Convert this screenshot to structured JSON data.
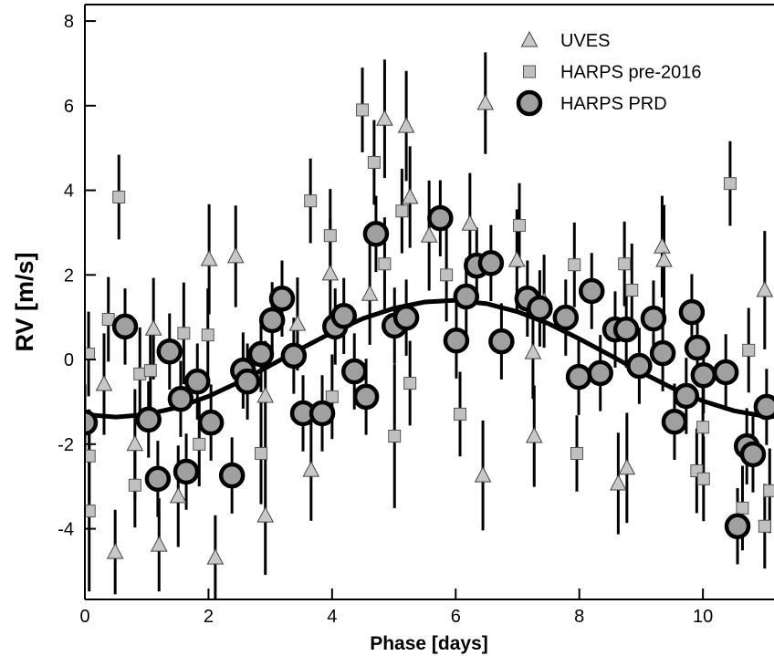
{
  "chart_data": {
    "type": "scatter",
    "xlabel": "Phase [days]",
    "ylabel": "RV [m/s]",
    "xlim": [
      0,
      11.15
    ],
    "ylim": [
      -5.67,
      8.39
    ],
    "xticks": [
      0,
      2,
      4,
      6,
      8,
      10
    ],
    "yticks": [
      -4,
      -2,
      0,
      2,
      4,
      6,
      8
    ],
    "legend": "upper right",
    "series": [
      {
        "name": "UVES",
        "marker": "triangle",
        "color": "#c8c8c8",
        "x": [
          0.31,
          0.49,
          0.81,
          1.2,
          1.11,
          1.51,
          2.01,
          2.11,
          2.44,
          2.92,
          2.92,
          3.66,
          3.44,
          3.97,
          4.61,
          4.85,
          5.2,
          5.26,
          5.57,
          6.23,
          6.44,
          6.48,
          6.99,
          7.25,
          7.27,
          7.43,
          8.63,
          8.77,
          9.34,
          9.37,
          11.0
        ],
        "values": [
          -0.58,
          -4.55,
          -2.0,
          -4.38,
          0.73,
          -3.23,
          2.37,
          -4.68,
          2.44,
          -3.69,
          -0.86,
          -2.61,
          0.84,
          2.03,
          1.55,
          5.69,
          5.52,
          3.84,
          2.93,
          3.21,
          -2.74,
          6.06,
          2.35,
          0.17,
          -1.81,
          1.38,
          -2.93,
          -2.56,
          2.67,
          2.35,
          1.64
        ],
        "errors": [
          1.2,
          1.0,
          1.3,
          1.1,
          1.2,
          1.2,
          1.3,
          1.0,
          1.2,
          1.4,
          1.3,
          1.2,
          1.1,
          1.3,
          1.2,
          1.4,
          1.3,
          1.2,
          1.3,
          1.2,
          1.3,
          1.2,
          1.2,
          1.1,
          1.2,
          1.1,
          1.2,
          1.3,
          1.2,
          1.3,
          1.4
        ]
      },
      {
        "name": "HARPS pre-2016",
        "marker": "square",
        "color": "#c0c0c0",
        "x": [
          0.06,
          0.07,
          0.07,
          0.38,
          0.55,
          0.89,
          0.81,
          1.06,
          1.6,
          1.85,
          1.99,
          2.85,
          3.65,
          3.97,
          4.0,
          4.49,
          4.68,
          4.85,
          5.01,
          5.13,
          5.26,
          5.85,
          6.07,
          7.03,
          7.96,
          7.92,
          8.73,
          8.85,
          10.44,
          10.0,
          9.9,
          10.01,
          11.0,
          10.64,
          10.74,
          11.08
        ],
        "values": [
          0.13,
          -2.28,
          -3.58,
          0.95,
          3.84,
          -0.34,
          -2.97,
          -0.26,
          0.62,
          -2.0,
          0.58,
          -2.22,
          3.75,
          2.93,
          -0.88,
          5.9,
          4.66,
          2.26,
          -1.81,
          3.51,
          -0.56,
          2.0,
          -1.29,
          3.17,
          -2.22,
          2.24,
          2.26,
          1.64,
          4.16,
          -1.6,
          -2.63,
          -2.82,
          -3.94,
          -3.51,
          0.22,
          -3.1
        ],
        "errors": [
          1.0,
          1.1,
          1.9,
          1.0,
          1.0,
          1.1,
          1.0,
          1.0,
          1.2,
          1.0,
          1.1,
          1.2,
          1.0,
          1.1,
          1.0,
          1.0,
          1.0,
          1.1,
          1.7,
          1.0,
          1.0,
          1.1,
          1.0,
          1.0,
          0.9,
          1.0,
          1.0,
          1.1,
          1.0,
          1.1,
          1.0,
          1.0,
          1.0,
          1.0,
          1.0,
          1.0
        ]
      },
      {
        "name": "HARPS PRD",
        "marker": "circle",
        "color": "#a0a0a0",
        "x": [
          0,
          0.65,
          1.03,
          1.18,
          1.37,
          1.55,
          1.64,
          1.82,
          2.04,
          2.38,
          2.56,
          2.63,
          2.85,
          3.03,
          3.19,
          3.38,
          3.53,
          3.84,
          4.05,
          4.19,
          4.36,
          4.55,
          4.71,
          5.01,
          5.2,
          5.75,
          6.01,
          6.17,
          6.34,
          6.57,
          6.74,
          7.16,
          7.36,
          7.78,
          7.99,
          8.2,
          8.34,
          8.58,
          8.76,
          9.2,
          8.97,
          9.35,
          9.54,
          9.73,
          9.82,
          9.91,
          10.01,
          10.37,
          10.56,
          10.71,
          10.81,
          11.03
        ],
        "values": [
          -1.49,
          0.78,
          -1.42,
          -2.82,
          0.19,
          -0.93,
          -2.65,
          -0.52,
          -1.49,
          -2.74,
          -0.26,
          -0.52,
          0.13,
          0.93,
          1.44,
          0.09,
          -1.27,
          -1.27,
          0.78,
          1.03,
          -0.28,
          -0.88,
          2.97,
          0.8,
          0.99,
          3.34,
          0.45,
          1.49,
          2.22,
          2.28,
          0.43,
          1.44,
          1.21,
          0.99,
          -0.41,
          1.62,
          -0.32,
          0.71,
          0.71,
          0.97,
          -0.15,
          0.15,
          -1.47,
          -0.86,
          1.12,
          0.28,
          -0.37,
          -0.3,
          -3.94,
          -2.05,
          -2.24,
          -1.12
        ],
        "errors": [
          0.9,
          0.9,
          0.9,
          0.9,
          0.9,
          0.9,
          0.9,
          0.9,
          0.9,
          0.9,
          0.9,
          0.9,
          0.9,
          0.9,
          0.9,
          0.9,
          0.9,
          0.9,
          0.9,
          0.9,
          0.9,
          0.9,
          0.9,
          0.9,
          0.9,
          0.9,
          0.9,
          0.9,
          0.9,
          0.9,
          0.9,
          0.9,
          0.9,
          0.9,
          0.9,
          0.9,
          0.9,
          0.9,
          0.9,
          0.9,
          0.9,
          0.9,
          0.9,
          0.9,
          0.9,
          0.9,
          0.9,
          0.9,
          0.9,
          0.9,
          0.9,
          0.9
        ]
      }
    ],
    "fit": {
      "color": "#000000",
      "x": [
        0,
        0.5,
        1,
        1.5,
        2,
        2.5,
        3,
        3.5,
        4,
        4.5,
        5,
        5.5,
        6,
        6.5,
        7,
        7.5,
        8,
        8.5,
        9,
        9.5,
        10,
        10.5,
        11,
        11.15
      ],
      "values": [
        -1.3,
        -1.36,
        -1.3,
        -1.13,
        -0.87,
        -0.53,
        -0.14,
        0.26,
        0.64,
        0.97,
        1.21,
        1.36,
        1.4,
        1.32,
        1.13,
        0.85,
        0.49,
        0.1,
        -0.3,
        -0.67,
        -0.98,
        -1.21,
        -1.34,
        -1.35
      ]
    }
  }
}
